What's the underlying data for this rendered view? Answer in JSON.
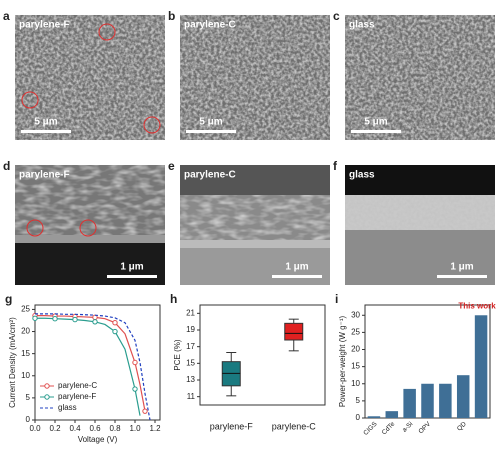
{
  "panels": [
    {
      "letter": "a",
      "label": "parylene-F",
      "scale": "5 μm"
    },
    {
      "letter": "b",
      "label": "parylene-C",
      "scale": "5 μm"
    },
    {
      "letter": "c",
      "label": "glass",
      "scale": "5 μm"
    },
    {
      "letter": "d",
      "label": "parylene-F",
      "scale": "1 μm"
    },
    {
      "letter": "e",
      "label": "parylene-C",
      "scale": "1 μm"
    },
    {
      "letter": "f",
      "label": "glass",
      "scale": "1 μm"
    }
  ],
  "chart_data": [
    {
      "panel": "g",
      "type": "line",
      "xlabel": "Voltage (V)",
      "ylabel": "Current Density (mA/cm²)",
      "x": [
        0,
        0.1,
        0.2,
        0.3,
        0.4,
        0.5,
        0.6,
        0.7,
        0.8,
        0.9,
        1.0,
        1.05,
        1.1,
        1.15
      ],
      "series": [
        {
          "name": "parylene-C",
          "color": "#e05050",
          "marker": true,
          "dashed": false,
          "values": [
            23.6,
            23.6,
            23.5,
            23.5,
            23.4,
            23.3,
            23.2,
            22.9,
            22,
            19.5,
            13,
            8,
            2,
            null
          ]
        },
        {
          "name": "parylene-F",
          "color": "#2a9d8f",
          "marker": true,
          "dashed": false,
          "values": [
            23,
            23,
            22.9,
            22.8,
            22.7,
            22.5,
            22.2,
            21.6,
            20,
            16,
            7,
            1,
            null,
            null
          ]
        },
        {
          "name": "glass",
          "color": "#2040c0",
          "marker": false,
          "dashed": true,
          "values": [
            24,
            24,
            24,
            23.9,
            23.9,
            23.8,
            23.7,
            23.5,
            23.1,
            22,
            18,
            13,
            6,
            0
          ]
        }
      ],
      "xlim": [
        0,
        1.25
      ],
      "ylim": [
        0,
        26
      ],
      "xticks": [
        {
          "value": 0,
          "label": "0.0"
        },
        {
          "value": 0.2,
          "label": "0.2"
        },
        {
          "value": 0.4,
          "label": "0.4"
        },
        {
          "value": 0.6,
          "label": "0.6"
        },
        {
          "value": 0.8,
          "label": "0.8"
        },
        {
          "value": 1,
          "label": "1.0"
        },
        {
          "value": 1.2,
          "label": "1.2"
        }
      ],
      "yticks": [
        0,
        5,
        10,
        15,
        20,
        25
      ],
      "legend": "lower-left"
    },
    {
      "panel": "h",
      "type": "box",
      "ylabel": "PCE (%)",
      "categories": [
        "parylene-F",
        "parylene-C"
      ],
      "colors": [
        "#1a7a80",
        "#e02020"
      ],
      "boxes": [
        {
          "min": 11.1,
          "q1": 12.3,
          "median": 13.8,
          "q3": 15.2,
          "max": 16.3
        },
        {
          "min": 16.5,
          "q1": 17.8,
          "median": 18.6,
          "q3": 19.8,
          "max": 20.3
        }
      ],
      "ylim": [
        10,
        22
      ],
      "yticks": [
        11,
        13,
        15,
        17,
        19,
        21
      ]
    },
    {
      "panel": "i",
      "type": "bar",
      "ylabel": "Power-per-weight (W g⁻¹)",
      "categories": [
        "CIGS",
        "CdTe",
        "a-Si",
        "OPV",
        null,
        "QD",
        null
      ],
      "values": [
        0.5,
        2,
        8.5,
        10,
        10,
        12.5,
        30
      ],
      "color": "#3f6f96",
      "annotation": "This work",
      "ylim": [
        0,
        33
      ],
      "yticks": [
        0,
        5,
        10,
        15,
        20,
        25,
        30
      ]
    }
  ]
}
